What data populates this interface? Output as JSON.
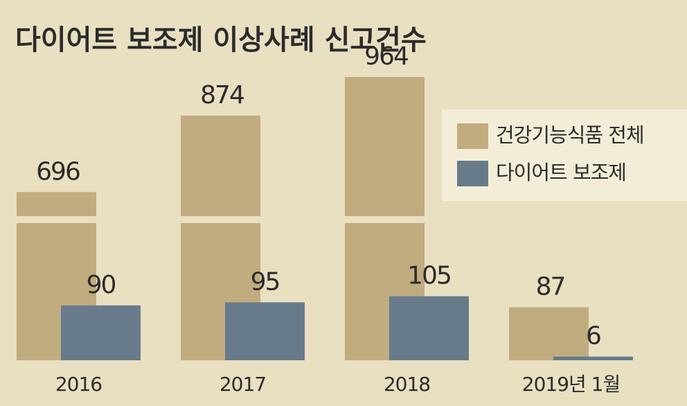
{
  "chart_data": {
    "type": "bar",
    "title": "다이어트 보조제 이상사례 신고건수",
    "categories": [
      "2016",
      "2017",
      "2018",
      "2019년 1월"
    ],
    "series": [
      {
        "name": "건강기능식품 전체",
        "color": "#c1ac80",
        "values": [
          696,
          874,
          964,
          87
        ]
      },
      {
        "name": "다이어트 보조제",
        "color": "#677b8a",
        "values": [
          90,
          95,
          105,
          6
        ]
      }
    ]
  }
}
